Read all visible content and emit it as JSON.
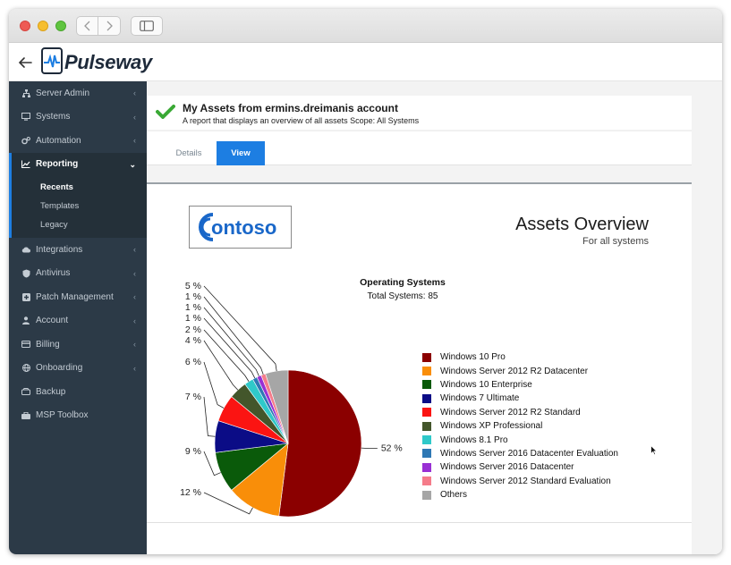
{
  "app": {
    "name": "Pulseway"
  },
  "sidebar": {
    "items": [
      {
        "label": "Server Admin",
        "icon": "sitemap-icon"
      },
      {
        "label": "Systems",
        "icon": "monitor-icon"
      },
      {
        "label": "Automation",
        "icon": "gears-icon"
      },
      {
        "label": "Reporting",
        "icon": "line-chart-icon"
      },
      {
        "label": "Integrations",
        "icon": "cloud-icon"
      },
      {
        "label": "Antivirus",
        "icon": "shield-icon"
      },
      {
        "label": "Patch Management",
        "icon": "plus-box-icon"
      },
      {
        "label": "Account",
        "icon": "user-icon"
      },
      {
        "label": "Billing",
        "icon": "card-icon"
      },
      {
        "label": "Onboarding",
        "icon": "globe-icon"
      },
      {
        "label": "Backup",
        "icon": "backup-icon"
      },
      {
        "label": "MSP Toolbox",
        "icon": "toolbox-icon"
      }
    ],
    "reporting_sub": [
      "Recents",
      "Templates",
      "Legacy"
    ]
  },
  "report": {
    "title": "My Assets from ermins.dreimanis account",
    "description": "A report that displays an overview of all assets Scope: All Systems",
    "tabs": {
      "details": "Details",
      "view": "View"
    },
    "company_logo_text": "ontoso",
    "heading": "Assets Overview",
    "subheading": "For all systems"
  },
  "chart_data": {
    "type": "pie",
    "title": "Operating Systems",
    "subtitle": "Total Systems: 85",
    "legend_position": "right",
    "slices": [
      {
        "label": "Windows 10 Pro",
        "percent": 52,
        "color": "#8b0000"
      },
      {
        "label": "Windows Server 2012 R2 Datacenter",
        "percent": 12,
        "color": "#f98e09"
      },
      {
        "label": "Windows 10 Enterprise",
        "percent": 9,
        "color": "#0a5a0a"
      },
      {
        "label": "Windows 7 Ultimate",
        "percent": 7,
        "color": "#0b0c86"
      },
      {
        "label": "Windows Server 2012 R2 Standard",
        "percent": 6,
        "color": "#fb1412"
      },
      {
        "label": "Windows XP Professional",
        "percent": 4,
        "color": "#43562b"
      },
      {
        "label": "Windows 8.1 Pro",
        "percent": 2,
        "color": "#2fc9c9"
      },
      {
        "label": "Windows Server 2016 Datacenter Evaluation",
        "percent": 1,
        "color": "#2e78b4"
      },
      {
        "label": "Windows Server 2016 Datacenter",
        "percent": 1,
        "color": "#9930d4"
      },
      {
        "label": "Windows Server 2012 Standard Evaluation",
        "percent": 1,
        "color": "#f57c8a"
      },
      {
        "label": "Others",
        "percent": 5,
        "color": "#a6a6a6"
      }
    ],
    "label_suffix": " %"
  }
}
